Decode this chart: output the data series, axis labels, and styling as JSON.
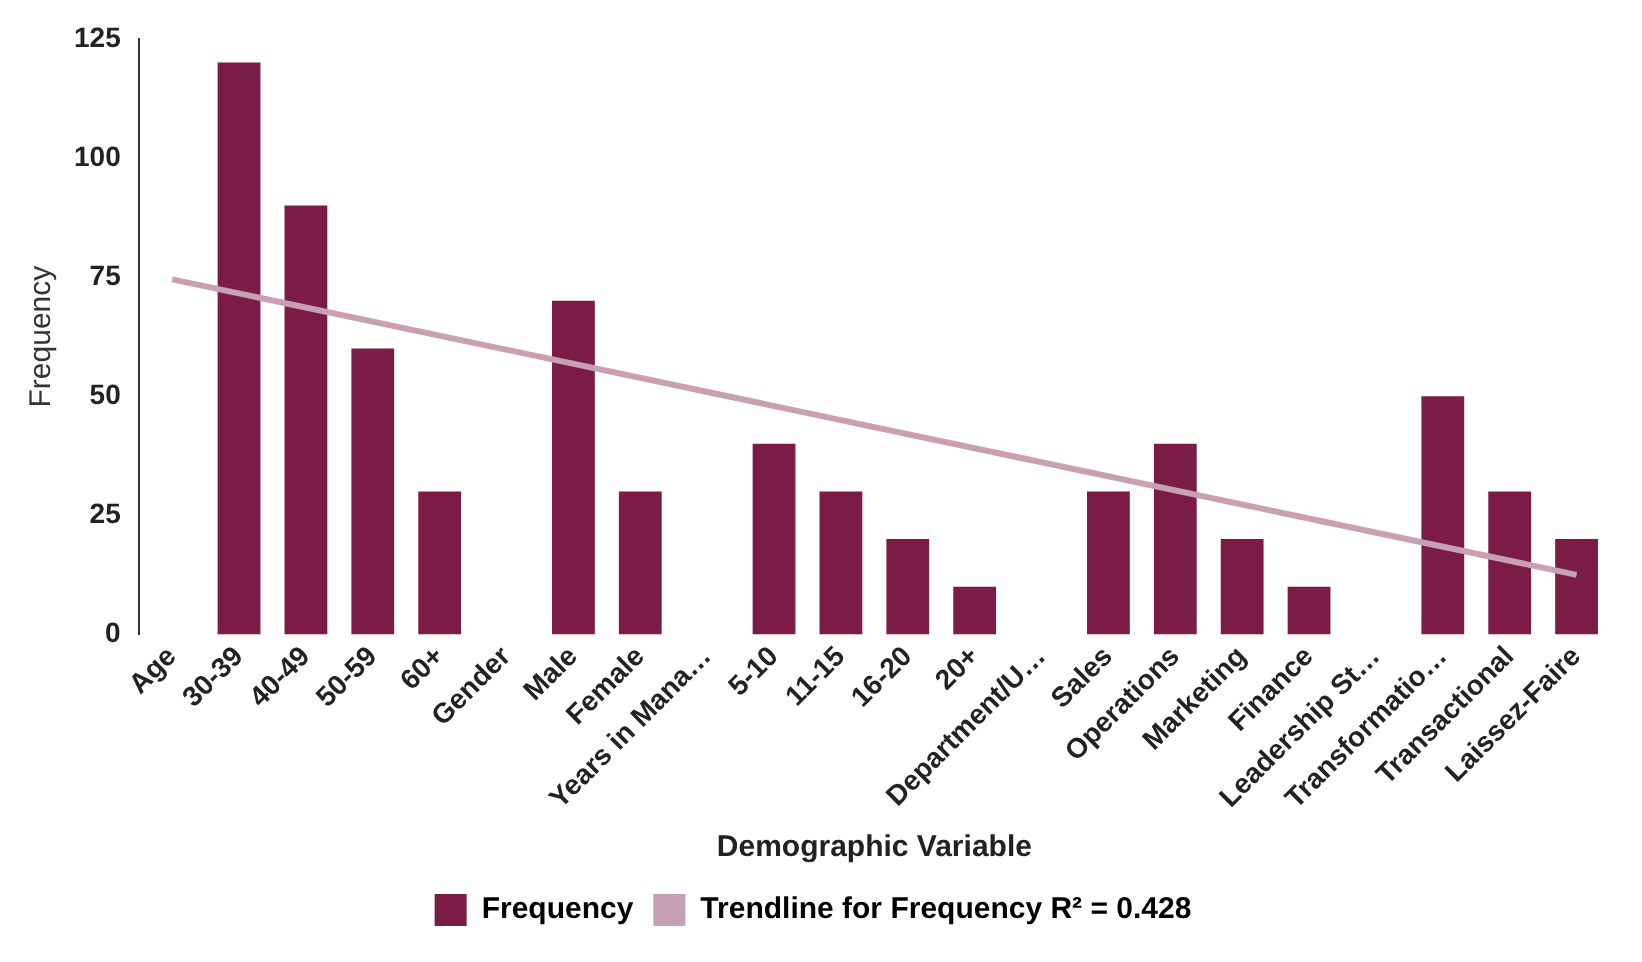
{
  "chart_data": {
    "type": "bar",
    "xlabel": "Demographic Variable",
    "ylabel": "Frequency",
    "categories": [
      "Age",
      "30-39",
      "40-49",
      "50-59",
      "60+",
      "Gender",
      "Male",
      "Female",
      "Years in Mana…",
      "5-10",
      "11-15",
      "16-20",
      "20+",
      "Department/U…",
      "Sales",
      "Operations",
      "Marketing",
      "Finance",
      "Leadership St…",
      "Transformatio…",
      "Transactional",
      "Laissez-Faire"
    ],
    "series": [
      {
        "name": "Frequency",
        "color": "#7b1c47",
        "values": [
          null,
          120,
          90,
          60,
          30,
          null,
          70,
          30,
          null,
          40,
          30,
          20,
          10,
          null,
          30,
          40,
          20,
          10,
          null,
          50,
          30,
          20
        ]
      },
      {
        "name": "Trendline for Frequency R² = 0.428",
        "type": "line",
        "color": "#c9a0b1",
        "values": [
          74.5,
          null,
          null,
          null,
          null,
          null,
          null,
          null,
          null,
          null,
          null,
          null,
          null,
          null,
          null,
          null,
          null,
          null,
          null,
          null,
          null,
          12.5
        ]
      }
    ],
    "ylim": [
      0,
      125
    ],
    "yticks": [
      0,
      25,
      50,
      75,
      100,
      125
    ],
    "grid": false,
    "legend": "bottom",
    "marker": "none",
    "line_style": "solid"
  }
}
